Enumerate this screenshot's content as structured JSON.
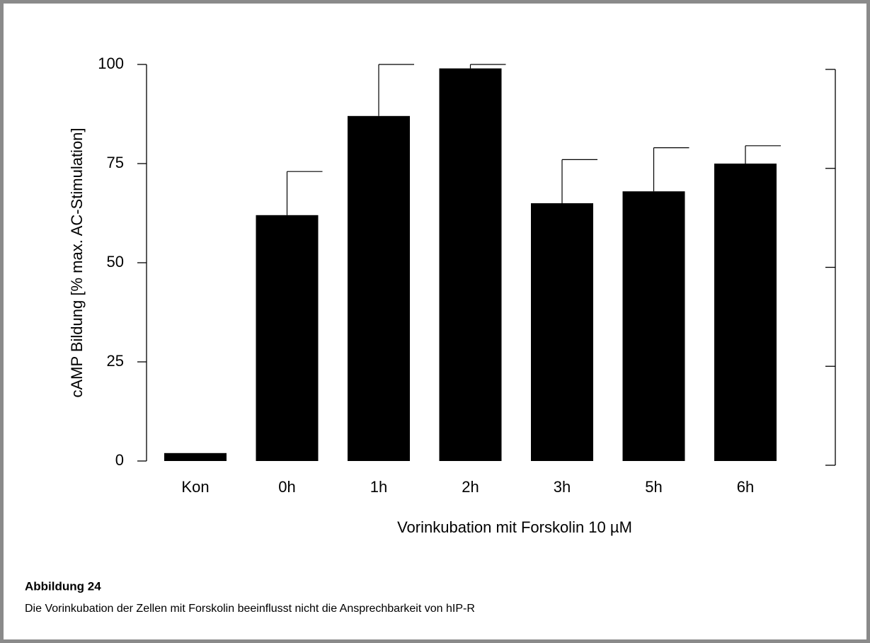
{
  "chart_data": {
    "type": "bar",
    "ylabel": "cAMP Bildung [% max. AC-Stimulation]",
    "xlabel": "Vorinkubation mit Forskolin 10 µM",
    "categories": [
      "Kon",
      "0h",
      "1h",
      "2h",
      "3h",
      "5h",
      "6h"
    ],
    "values": [
      2,
      62,
      87,
      99,
      65,
      68,
      75
    ],
    "errors": [
      null,
      11,
      13,
      1,
      11,
      11,
      4.5
    ],
    "color": "#000000",
    "ylim": [
      0,
      100
    ],
    "yticks": [
      0,
      25,
      50,
      75,
      100
    ],
    "y2lim": [
      0,
      100
    ],
    "y2ticks": [
      0,
      25,
      50,
      75,
      100
    ],
    "grid": false
  },
  "caption": {
    "title": "Abbildung 24",
    "text": "Die Vorinkubation der Zellen mit Forskolin beeinflusst nicht die Ansprechbarkeit von hIP-R"
  }
}
